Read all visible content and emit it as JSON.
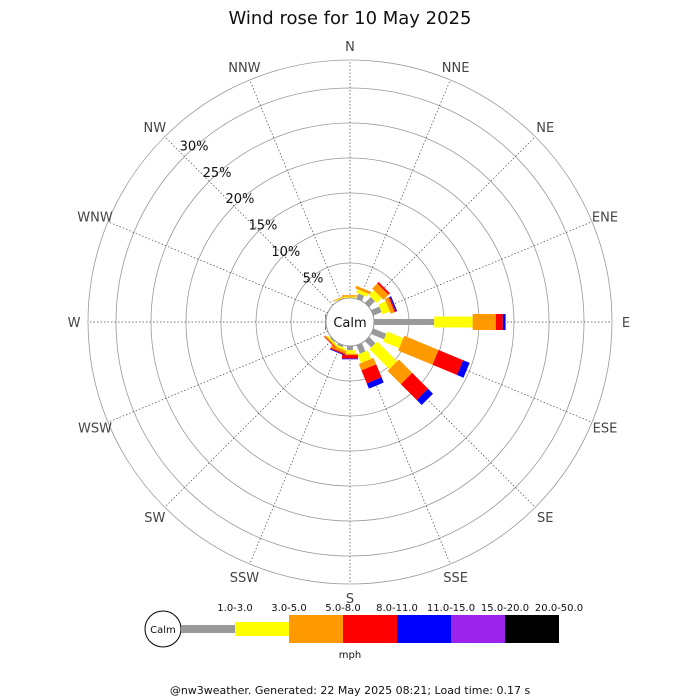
{
  "chart_data": {
    "type": "wind-rose",
    "title": "Wind rose for 10 May 2025",
    "directions": [
      "N",
      "NNE",
      "NE",
      "ENE",
      "E",
      "ESE",
      "SE",
      "SSE",
      "S",
      "SSW",
      "SW",
      "WSW",
      "W",
      "WNW",
      "NW",
      "NNW"
    ],
    "radial_ticks": [
      5,
      10,
      15,
      20,
      25,
      30
    ],
    "radial_tick_labels": [
      "5%",
      "10%",
      "15%",
      "20%",
      "25%",
      "30%"
    ],
    "r_max": 30,
    "unit": "mph",
    "calm_label": "Calm",
    "speed_bins": [
      {
        "label": "1.0-3.0",
        "color": "#999999"
      },
      {
        "label": "3.0-5.0",
        "color": "#ffff00"
      },
      {
        "label": "5.0-8.0",
        "color": "#ff9900"
      },
      {
        "label": "8.0-11.0",
        "color": "#ff0000"
      },
      {
        "label": "11.0-15.0",
        "color": "#0000ff"
      },
      {
        "label": "15.0-20.0",
        "color": "#9b23ea"
      },
      {
        "label": "20.0-50.0",
        "color": "#000000"
      }
    ],
    "frequencies": {
      "N": [
        0.0,
        0.2,
        0.2,
        0.0,
        0.0,
        0.0,
        0.0
      ],
      "NNE": [
        0.8,
        0.5,
        0.4,
        0.0,
        0.0,
        0.0,
        0.0
      ],
      "NE": [
        1.2,
        1.0,
        1.0,
        0.3,
        0.0,
        0.0,
        0.0
      ],
      "ENE": [
        1.3,
        1.1,
        0.6,
        0.2,
        0.2,
        0.0,
        0.0
      ],
      "E": [
        8.6,
        5.5,
        3.3,
        1.0,
        0.4,
        0.0,
        0.0
      ],
      "ESE": [
        2.0,
        2.5,
        5.3,
        3.8,
        1.0,
        0.0,
        0.0
      ],
      "SE": [
        1.3,
        4.0,
        2.7,
        3.2,
        1.0,
        0.0,
        0.0
      ],
      "SSE": [
        1.3,
        1.3,
        1.0,
        2.0,
        0.8,
        0.0,
        0.0
      ],
      "S": [
        0.6,
        0.5,
        0.2,
        0.5,
        0.1,
        0.0,
        0.0
      ],
      "SSW": [
        0.3,
        0.3,
        0.4,
        0.2,
        0.1,
        0.0,
        0.0
      ],
      "SW": [
        0.2,
        0.2,
        0.2,
        0.1,
        0.0,
        0.0,
        0.0
      ],
      "WSW": [
        0.0,
        0.0,
        0.0,
        0.0,
        0.0,
        0.0,
        0.0
      ],
      "W": [
        0.0,
        0.0,
        0.0,
        0.1,
        0.0,
        0.0,
        0.0
      ],
      "WNW": [
        0.0,
        0.0,
        0.0,
        0.0,
        0.0,
        0.0,
        0.0
      ],
      "NW": [
        0.0,
        0.0,
        0.0,
        0.0,
        0.0,
        0.0,
        0.0
      ],
      "NNW": [
        0.1,
        0.1,
        0.1,
        0.0,
        0.0,
        0.0,
        0.0
      ]
    },
    "legend_placement": "bottom"
  },
  "footer": "@nw3weather. Generated: 22 May 2025 08:21; Load time: 0.17 s"
}
